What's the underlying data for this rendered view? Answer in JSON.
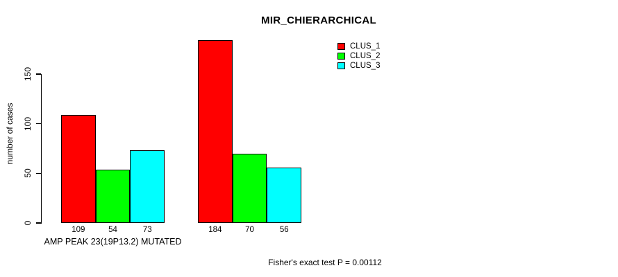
{
  "chart_data": {
    "type": "bar",
    "title": "MIR_CHIERARCHICAL",
    "ylabel": "number of cases",
    "axis_ticks": [
      0,
      50,
      100,
      150
    ],
    "ylim": [
      0,
      190
    ],
    "grid": false,
    "legend_position": "top-right",
    "categories": [
      "CLUS_1",
      "CLUS_2",
      "CLUS_3"
    ],
    "colors": [
      "#ff0000",
      "#00ff00",
      "#00ffff"
    ],
    "groups": [
      {
        "label": "AMP PEAK 23(19P13.2) MUTATED",
        "values": [
          109,
          54,
          73
        ]
      },
      {
        "label": "",
        "values": [
          184,
          70,
          56
        ]
      }
    ],
    "annotation": "Fisher's exact test P = 0.00112"
  }
}
